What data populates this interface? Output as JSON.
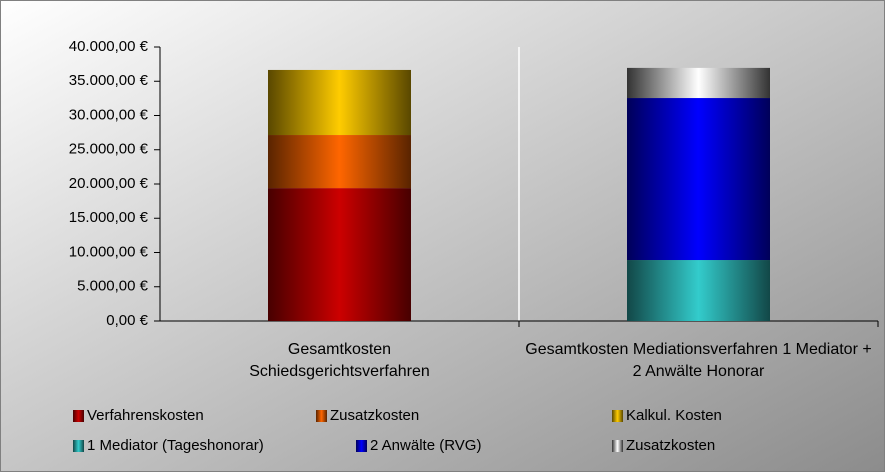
{
  "chart_data": {
    "type": "stacked_bar",
    "categories": [
      "Gesamtkosten Schiedsgerichtsverfahren",
      "Gesamtkosten Mediationsverfahren 1 Mediator + 2 Anwälte Honorar"
    ],
    "series": [
      {
        "name": "Verfahrenskosten",
        "color": "#cc0000",
        "values": [
          19400,
          null
        ]
      },
      {
        "name": "Zusatzkosten",
        "color": "#ff6600",
        "values": [
          7750,
          null
        ]
      },
      {
        "name": "Kalkul. Kosten",
        "color": "#ffcc00",
        "values": [
          9500,
          null
        ]
      },
      {
        "name": "1 Mediator (Tageshonorar)",
        "color": "#33cccc",
        "values": [
          null,
          8900
        ]
      },
      {
        "name": "2 Anwälte (RVG)",
        "color": "#0000ff",
        "values": [
          null,
          23650
        ]
      },
      {
        "name": "Zusatzkosten",
        "color": "#ffffff",
        "values": [
          null,
          4400
        ]
      }
    ],
    "ylim": [
      0,
      40000
    ],
    "yticks": [
      {
        "value": 0,
        "label": "0,00 €"
      },
      {
        "value": 5000,
        "label": "5.000,00 €"
      },
      {
        "value": 10000,
        "label": "10.000,00 €"
      },
      {
        "value": 15000,
        "label": "15.000,00 €"
      },
      {
        "value": 20000,
        "label": "20.000,00 €"
      },
      {
        "value": 25000,
        "label": "25.000,00 €"
      },
      {
        "value": 30000,
        "label": "30.000,00 €"
      },
      {
        "value": 35000,
        "label": "35.000,00 €"
      },
      {
        "value": 40000,
        "label": "40.000,00 €"
      }
    ]
  }
}
